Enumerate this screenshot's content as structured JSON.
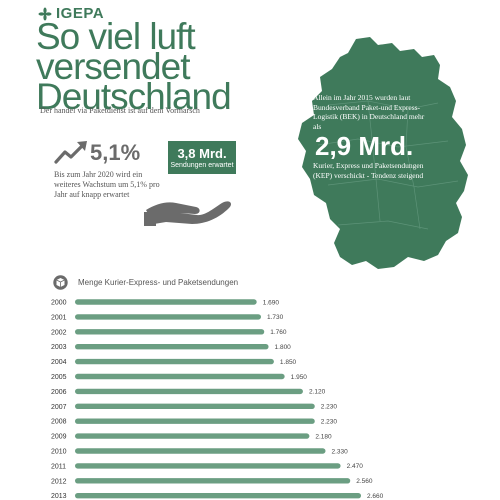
{
  "brand": {
    "name": "IGEPA"
  },
  "headline": {
    "line1": "So viel luft",
    "line2": "versendet",
    "line3": "Deutschland"
  },
  "subtitle": "Der handel via Paketdienst ist auf dem Vormarsch",
  "growth": {
    "value": "5,1%",
    "note": "Bis zum Jahr 2020 wird ein weiteres Wachstum um 5,1% pro Jahr auf knapp erwartet"
  },
  "shipments": {
    "value": "3,8 Mrd.",
    "caption": "Sendungen erwartet"
  },
  "map_info": {
    "intro": "Allein im Jahr 2015 wurden laut Bundesverband Paket-und Express-Logistik (BEK) in Deutschland mehr als",
    "big_value": "2,9 Mrd.",
    "outro": "Kurier, Express und Paketsendungen (KEP) verschickt - Tendenz steigend"
  },
  "colors": {
    "accent": "#3f7a5b",
    "bar": "#6b9e82",
    "text": "#4a4a4a"
  },
  "icons": {
    "brand": "leaf-logo-icon",
    "trend": "trend-arrow-icon",
    "hand": "hand-holding-icon",
    "chart": "package-pin-icon"
  },
  "chart_data": {
    "type": "bar",
    "orientation": "horizontal",
    "title": "Menge Kurier-Express- und Paketsendungen",
    "categories": [
      "2000",
      "2001",
      "2002",
      "2003",
      "2004",
      "2005",
      "2006",
      "2007",
      "2008",
      "2009",
      "2010",
      "2011",
      "2012",
      "2013"
    ],
    "values": [
      1690,
      1730,
      1760,
      1800,
      1850,
      1950,
      2120,
      2230,
      2230,
      2180,
      2330,
      2470,
      2560,
      2660
    ],
    "value_labels": [
      "1.690",
      "1.730",
      "1.760",
      "1.800",
      "1.850",
      "1.950",
      "2.120",
      "2.230",
      "2.230",
      "2.180",
      "2.330",
      "2.470",
      "2.560",
      "2.660"
    ],
    "xlim": [
      0,
      2660
    ],
    "grid": false
  }
}
